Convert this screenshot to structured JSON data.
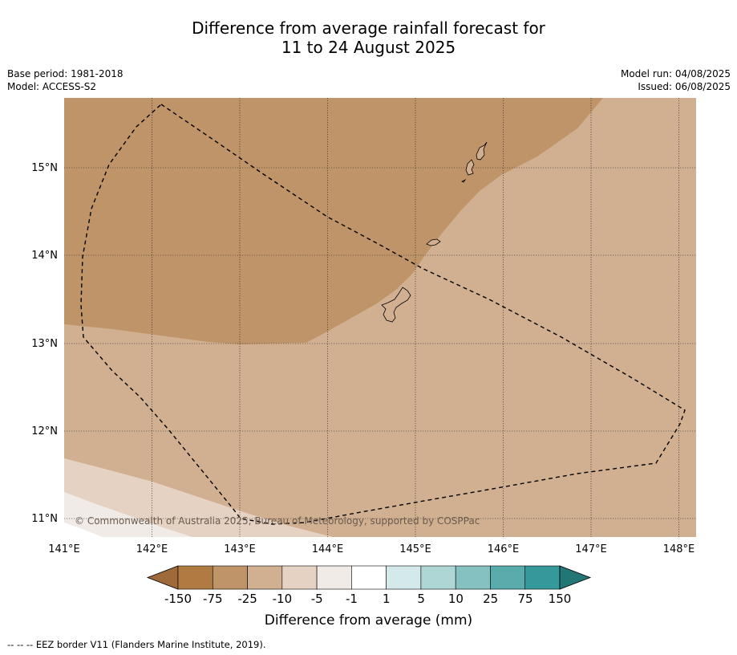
{
  "title": {
    "line1": "Difference from average rainfall forecast for",
    "line2": "11 to 24 August 2025"
  },
  "meta": {
    "base_period": "Base period: 1981-2018",
    "model": "Model: ACCESS-S2",
    "model_run": "Model run: 04/08/2025",
    "issued": "Issued: 06/08/2025"
  },
  "map": {
    "lon_ticks": [
      "141°E",
      "142°E",
      "143°E",
      "144°E",
      "145°E",
      "146°E",
      "147°E",
      "148°E"
    ],
    "lat_ticks": [
      "15°N",
      "14°N",
      "13°N",
      "12°N",
      "11°N"
    ],
    "copyright": "© Commonwealth of Australia 2025, Bureau of Meteorology, supported by COSPPac"
  },
  "legend": {
    "labels": [
      "-150",
      "-75",
      "-25",
      "-10",
      "-5",
      "-1",
      "1",
      "5",
      "10",
      "25",
      "75",
      "150"
    ],
    "colors": [
      "#9e6a3a",
      "#b07a43",
      "#c09469",
      "#d1b092",
      "#e5d2c2",
      "#f1ebe7",
      "#ffffff",
      "#d4eaea",
      "#aed6d4",
      "#84c1c0",
      "#5aacac",
      "#35989a",
      "#227675"
    ],
    "title": "Difference from average (mm)"
  },
  "footnote": "--  --  -- EEZ border V11 (Flanders Marine Institute, 2019)."
}
